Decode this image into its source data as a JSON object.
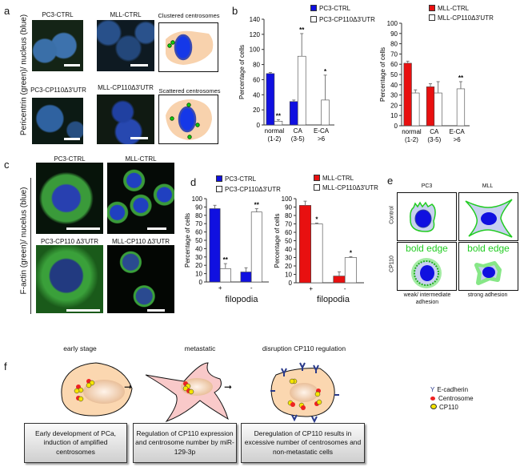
{
  "panels": {
    "a": "a",
    "b": "b",
    "c": "c",
    "d": "d",
    "e": "e",
    "f": "f"
  },
  "panel_a": {
    "ylabel": "Pericentrin (green)/ nucleus (blue)",
    "titles": [
      "PC3-CTRL",
      "MLL-CTRL",
      "Clustered centrosomes",
      "PC3-CP110Δ3'UTR",
      "MLL-CP110Δ3'UTR",
      "Scattered centrosomes"
    ]
  },
  "panel_c": {
    "ylabel": "F-actin (green)/ nucelus (blue)",
    "titles": [
      "PC3-CTRL",
      "MLL-CTRL",
      "PC3-CP110 Δ3'UTR",
      "MLL-CP110 Δ3'UTR"
    ]
  },
  "panel_e": {
    "cols": [
      "PC3",
      "MLL"
    ],
    "rows": [
      "Control",
      "CP110"
    ],
    "bold_edge": "bold edge",
    "captions": [
      "weak/ intermediate adhesion",
      "strong adhesion"
    ]
  },
  "panel_f": {
    "titles": [
      "early stage",
      "metastatic",
      "disruption CP110 regulation"
    ],
    "boxes": [
      "Early development of PCa, induction of amplified centrosomes",
      "Regulation of CP110 expression and centrosome number by miR-129-3p",
      "Deregulation of CP110 results in excessive number of centrosomes and non-metastatic cells"
    ],
    "legend": [
      "E-cadherin",
      "Centrosome",
      "CP110"
    ]
  },
  "colors": {
    "pc3": "#1010e0",
    "mll": "#e81010",
    "cp110": "#ffffff"
  },
  "chart_data": [
    {
      "type": "bar",
      "panel": "b",
      "ylabel": "Percentage of cells",
      "ylim": [
        0,
        140
      ],
      "ystep": 20,
      "categories": [
        "normal",
        "CA",
        "E-CA"
      ],
      "subcategories": [
        "(1-2)",
        "(3-5)",
        ">6"
      ],
      "series": [
        {
          "name": "PC3-CTRL",
          "color": "#1010e0",
          "values": [
            68,
            31,
            0
          ],
          "errors": [
            1.5,
            2,
            0
          ],
          "sig": [
            "",
            "",
            ""
          ]
        },
        {
          "name": "PC3-CP110Δ3'UTR",
          "color": "#ffffff",
          "values": [
            5,
            91,
            33
          ],
          "errors": [
            2,
            30,
            33
          ],
          "sig": [
            "**",
            "**",
            "*"
          ]
        }
      ]
    },
    {
      "type": "bar",
      "panel": "b",
      "ylabel": "Percentage of cells",
      "ylim": [
        0,
        100
      ],
      "ystep": 10,
      "categories": [
        "normal",
        "CA",
        "E-CA"
      ],
      "subcategories": [
        "(1-2)",
        "(3-5)",
        ">6"
      ],
      "series": [
        {
          "name": "MLL-CTRL",
          "color": "#e81010",
          "values": [
            61,
            38,
            0
          ],
          "errors": [
            2,
            3,
            0
          ],
          "sig": [
            "",
            "",
            ""
          ]
        },
        {
          "name": "MLL-CP110Δ3'UTR",
          "color": "#ffffff",
          "values": [
            32,
            32,
            36
          ],
          "errors": [
            3,
            11,
            7
          ],
          "sig": [
            "",
            "",
            "**"
          ]
        }
      ]
    },
    {
      "type": "bar",
      "panel": "d",
      "ylabel": "Percentage of cells",
      "xlabel": "filopodia",
      "ylim": [
        0,
        100
      ],
      "ystep": 10,
      "categories": [
        "+",
        "-"
      ],
      "subcategories": [
        "",
        ""
      ],
      "series": [
        {
          "name": "PC3-CTRL",
          "color": "#1010e0",
          "values": [
            88,
            12
          ],
          "errors": [
            4,
            5
          ],
          "sig": [
            "",
            ""
          ]
        },
        {
          "name": "PC3-CP110Δ3'UTR",
          "color": "#ffffff",
          "values": [
            16,
            84
          ],
          "errors": [
            6,
            4
          ],
          "sig": [
            "**",
            "**"
          ]
        }
      ]
    },
    {
      "type": "bar",
      "panel": "d",
      "ylabel": "Percentage of cells",
      "xlabel": "filopodia",
      "ylim": [
        0,
        100
      ],
      "ystep": 10,
      "categories": [
        "+",
        "-"
      ],
      "subcategories": [
        "",
        ""
      ],
      "series": [
        {
          "name": "MLL-CTRL",
          "color": "#e81010",
          "values": [
            92,
            8
          ],
          "errors": [
            5,
            5
          ],
          "sig": [
            "",
            ""
          ]
        },
        {
          "name": "MLL-CP110Δ3'UTR",
          "color": "#ffffff",
          "values": [
            70,
            30
          ],
          "errors": [
            1,
            1
          ],
          "sig": [
            "*",
            "*"
          ]
        }
      ]
    }
  ]
}
